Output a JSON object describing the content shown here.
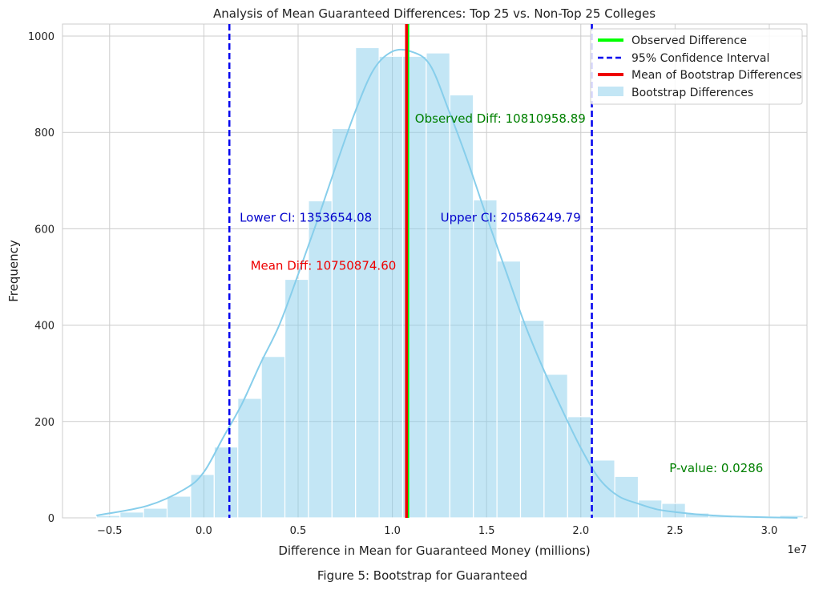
{
  "caption": "Figure 5: Bootstrap for Guaranteed",
  "chart_data": {
    "type": "histogram",
    "title": "Analysis of Mean Guaranteed Differences: Top 25 vs. Non-Top 25 Colleges",
    "xlabel": "Difference in Mean for Guaranteed Money (millions)",
    "ylabel": "Frequency",
    "x_offset_text": "1e7",
    "xlim": [
      -0.75,
      3.2
    ],
    "ylim": [
      0,
      1025
    ],
    "grid": true,
    "xticks": [
      -0.5,
      0.0,
      0.5,
      1.0,
      1.5,
      2.0,
      2.5,
      3.0
    ],
    "xtick_labels": [
      "−0.5",
      "0.0",
      "0.5",
      "1.0",
      "1.5",
      "2.0",
      "2.5",
      "3.0"
    ],
    "yticks": [
      0,
      200,
      400,
      600,
      800,
      1000
    ],
    "ytick_labels": [
      "0",
      "200",
      "400",
      "600",
      "800",
      "1000"
    ],
    "bin_edges": [
      -0.57,
      -0.445,
      -0.32,
      -0.195,
      -0.07,
      0.055,
      0.18,
      0.305,
      0.43,
      0.555,
      0.68,
      0.805,
      0.93,
      1.055,
      1.18,
      1.305,
      1.43,
      1.555,
      1.68,
      1.805,
      1.93,
      2.055,
      2.18,
      2.305,
      2.43,
      2.555,
      2.68,
      2.805,
      2.93,
      3.055,
      3.18
    ],
    "counts": [
      5,
      12,
      20,
      45,
      90,
      147,
      248,
      335,
      495,
      658,
      808,
      976,
      958,
      958,
      965,
      878,
      660,
      533,
      410,
      298,
      210,
      120,
      86,
      37,
      30,
      10,
      4,
      2,
      2,
      5
    ],
    "kde_x": [
      -0.57,
      -0.3,
      -0.1,
      0.0,
      0.1,
      0.2,
      0.3,
      0.4,
      0.5,
      0.6,
      0.7,
      0.8,
      0.9,
      1.0,
      1.1,
      1.2,
      1.3,
      1.4,
      1.5,
      1.6,
      1.7,
      1.8,
      1.9,
      2.0,
      2.1,
      2.2,
      2.3,
      2.4,
      2.5,
      2.6,
      2.7,
      2.8,
      3.0,
      3.15
    ],
    "kde_y": [
      5,
      25,
      60,
      95,
      165,
      235,
      320,
      400,
      505,
      615,
      730,
      840,
      930,
      968,
      968,
      940,
      845,
      740,
      625,
      515,
      405,
      310,
      225,
      145,
      80,
      45,
      30,
      18,
      12,
      8,
      5,
      3,
      1,
      0
    ],
    "series": [
      {
        "name": "Observed Difference",
        "value": 1.081095889,
        "color": "#00ff00",
        "style": "solid"
      },
      {
        "name": "95% Confidence Interval",
        "values": [
          0.135365408,
          2.058624979
        ],
        "color": "#0000ee",
        "style": "dashed"
      },
      {
        "name": "Mean of Bootstrap Differences",
        "value": 1.07508746,
        "color": "#ee0000",
        "style": "solid"
      },
      {
        "name": "Bootstrap Differences",
        "color": "#87ceeb",
        "style": "bar"
      }
    ],
    "legend_position": "top-right",
    "annotations": [
      {
        "text": "Observed Diff: 10810958.89",
        "x": 1.12,
        "y": 820,
        "color": "#008000",
        "anchor": "start"
      },
      {
        "text": "Lower CI: 1353654.08",
        "x": 0.19,
        "y": 615,
        "color": "#0000cc",
        "anchor": "start"
      },
      {
        "text": "Upper CI: 20586249.79",
        "x": 2.0,
        "y": 615,
        "color": "#0000cc",
        "anchor": "end"
      },
      {
        "text": "Mean Diff: 10750874.60",
        "x": 1.02,
        "y": 515,
        "color": "#ee0000",
        "anchor": "end"
      },
      {
        "text": "P-value: 0.0286",
        "x": 2.47,
        "y": 95,
        "color": "#008000",
        "anchor": "start"
      }
    ]
  }
}
